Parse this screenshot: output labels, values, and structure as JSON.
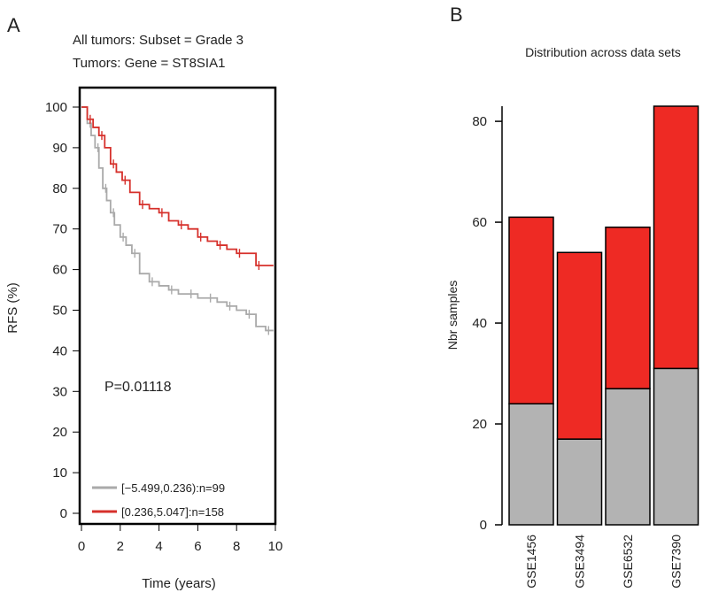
{
  "panel_a": {
    "label": "A",
    "title_line1": "All tumors: Subset = Grade 3",
    "title_line2": "Tumors: Gene = ST8SIA1",
    "pvalue_text": "P=0.01118",
    "legend": [
      {
        "text": "[−5.499,0.236):n=99",
        "color": "#aaaaaa"
      },
      {
        "text": "[0.236,5.047]:n=158",
        "color": "#d6302b"
      }
    ]
  },
  "panel_b": {
    "label": "B",
    "title": "Distribution across data sets"
  },
  "chart_data": [
    {
      "type": "line",
      "title": "All tumors: Subset = Grade 3 / Tumors: Gene = ST8SIA1",
      "xlabel": "Time (years)",
      "ylabel": "RFS (%)",
      "xlim": [
        0,
        10
      ],
      "ylim": [
        0,
        100
      ],
      "xticks": [
        0,
        2,
        4,
        6,
        8,
        10
      ],
      "yticks": [
        0,
        10,
        20,
        30,
        40,
        50,
        60,
        70,
        80,
        90,
        100
      ],
      "annotation": "P=0.01118",
      "series": [
        {
          "name": "[−5.499,0.236):n=99",
          "color": "#aaaaaa",
          "x": [
            0,
            0.3,
            0.5,
            0.7,
            0.9,
            1.1,
            1.3,
            1.5,
            1.7,
            2.0,
            2.3,
            2.6,
            3.0,
            3.5,
            4.0,
            4.5,
            5.0,
            5.5,
            6.0,
            6.5,
            7.0,
            7.5,
            8.0,
            8.5,
            9.0,
            9.5
          ],
          "y": [
            100,
            96,
            93,
            90,
            85,
            80,
            77,
            74,
            71,
            68,
            66,
            64,
            59,
            57,
            56,
            55,
            54,
            54,
            53,
            53,
            52,
            51,
            50,
            49,
            46,
            45
          ]
        },
        {
          "name": "[0.236,5.047]:n=158",
          "color": "#d6302b",
          "x": [
            0,
            0.3,
            0.6,
            0.9,
            1.2,
            1.5,
            1.8,
            2.1,
            2.5,
            3.0,
            3.5,
            4.0,
            4.5,
            5.0,
            5.5,
            6.0,
            6.5,
            7.0,
            7.5,
            8.0,
            8.5,
            9.0,
            9.5
          ],
          "y": [
            100,
            97,
            95,
            93,
            90,
            86,
            84,
            82,
            79,
            76,
            75,
            74,
            72,
            71,
            70,
            68,
            67,
            66,
            65,
            64,
            64,
            61,
            61
          ]
        }
      ]
    },
    {
      "type": "bar",
      "title": "Distribution across data sets",
      "ylabel": "Nbr samples",
      "categories": [
        "GSE1456",
        "GSE3494",
        "GSE6532",
        "GSE7390"
      ],
      "ylim": [
        0,
        83
      ],
      "yticks": [
        0,
        20,
        40,
        60,
        80
      ],
      "series": [
        {
          "color": "#b3b3b3",
          "values": [
            24,
            17,
            27,
            31
          ]
        },
        {
          "color": "#ee2a24",
          "values": [
            37,
            37,
            32,
            52
          ]
        }
      ]
    }
  ]
}
